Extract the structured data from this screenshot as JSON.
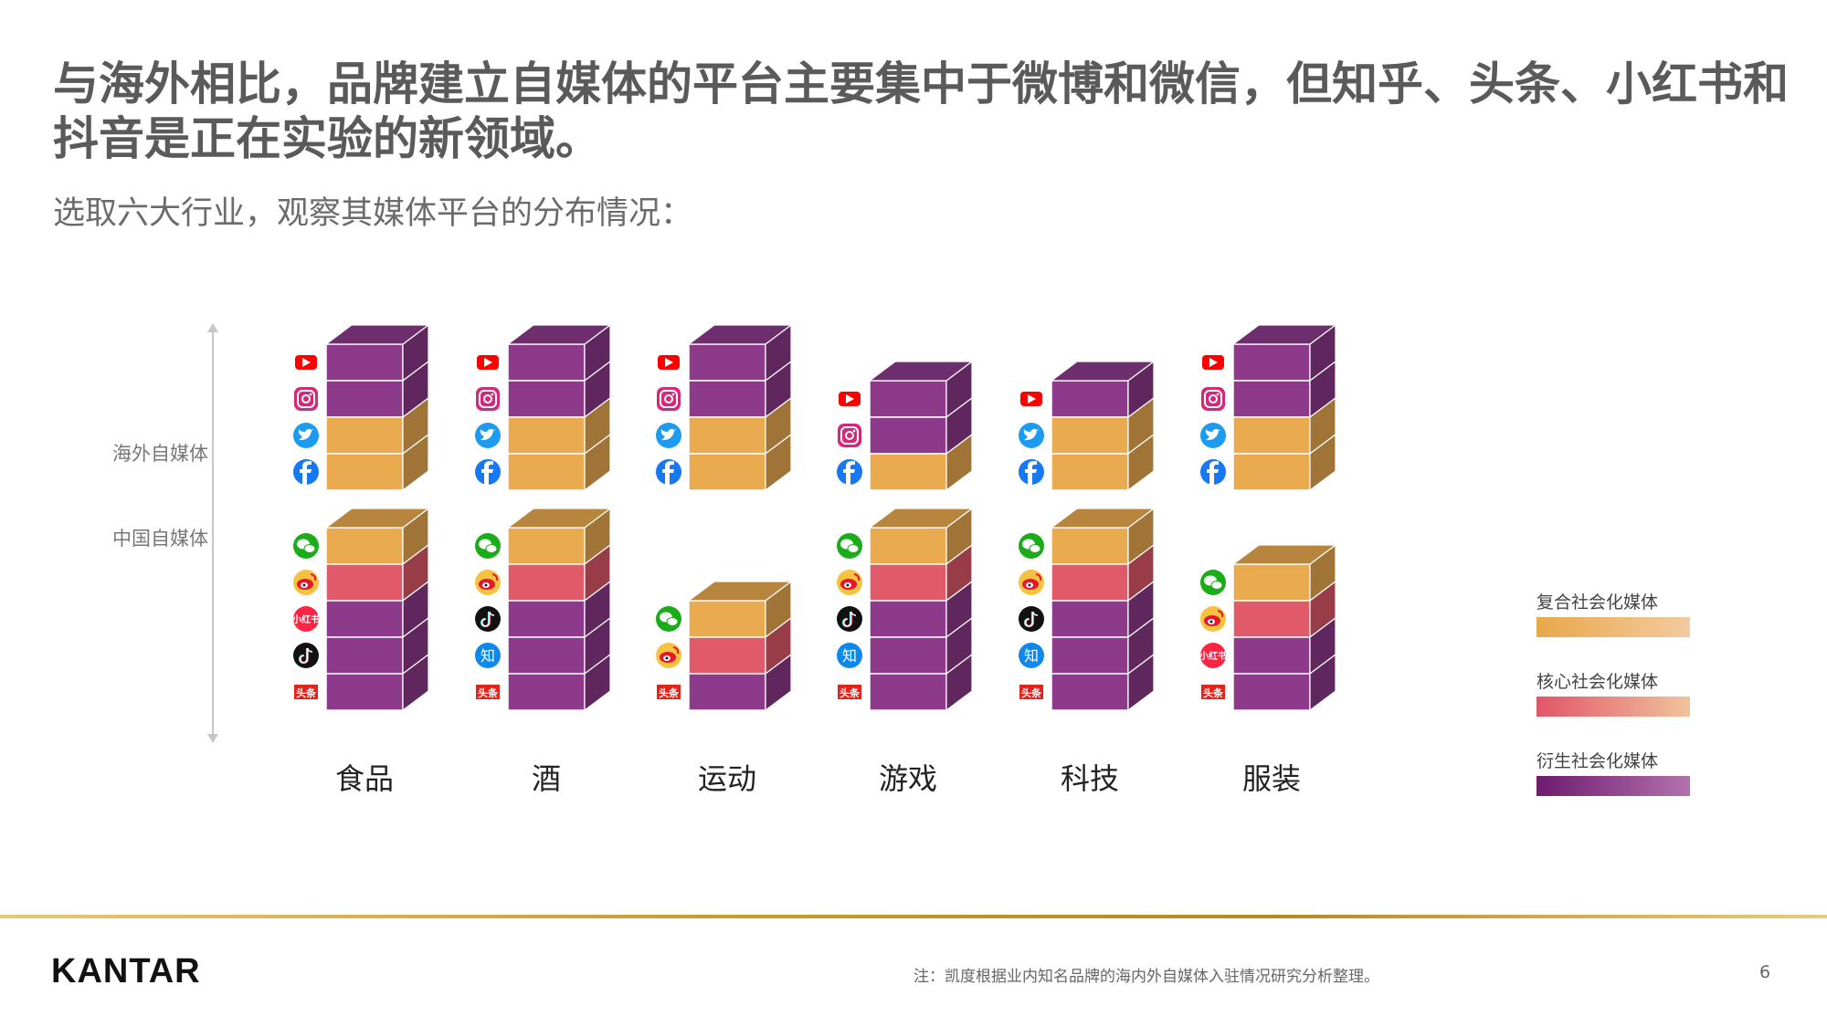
{
  "slide": {
    "title": "与海外相比，品牌建立自媒体的平台主要集中于微博和微信，但知乎、头条、小红书和抖音是正在实验的新领域。",
    "subtitle": "选取六大行业，观察其媒体平台的分布情况：",
    "overseas_label": "海外自媒体",
    "china_label": "中国自媒体",
    "note": "注：凯度根据业内知名品牌的海内外自媒体入驻情况研究分析整理。",
    "page_number": "6",
    "logo": "KANTAR"
  },
  "colors": {
    "composite": "#eaaa50",
    "core": "#e05a69",
    "derivative": "#8d3a8a"
  },
  "legend": [
    {
      "label": "复合社会化媒体",
      "type": "composite"
    },
    {
      "label": "核心社会化媒体",
      "type": "core"
    },
    {
      "label": "衍生社会化媒体",
      "type": "derivative"
    }
  ],
  "platforms": {
    "youtube": {
      "type": "derivative",
      "icon": "youtube-icon"
    },
    "instagram": {
      "type": "derivative",
      "icon": "instagram-icon"
    },
    "twitter": {
      "type": "composite",
      "icon": "twitter-icon"
    },
    "facebook": {
      "type": "composite",
      "icon": "facebook-icon"
    },
    "wechat": {
      "type": "composite",
      "icon": "wechat-icon"
    },
    "weibo": {
      "type": "core",
      "icon": "weibo-icon"
    },
    "xiaohongshu": {
      "type": "derivative",
      "icon": "xiaohongshu-icon",
      "text": "小红书"
    },
    "douyin": {
      "type": "derivative",
      "icon": "douyin-icon"
    },
    "zhihu": {
      "type": "derivative",
      "icon": "zhihu-icon",
      "text": "知"
    },
    "toutiao": {
      "type": "derivative",
      "icon": "toutiao-icon",
      "text": "头条"
    }
  },
  "chart_data": {
    "type": "table",
    "categories": [
      "食品",
      "酒",
      "运动",
      "游戏",
      "科技",
      "服装"
    ],
    "overseas": [
      [
        "youtube",
        "instagram",
        "twitter",
        "facebook"
      ],
      [
        "youtube",
        "instagram",
        "twitter",
        "facebook"
      ],
      [
        "youtube",
        "instagram",
        "twitter",
        "facebook"
      ],
      [
        "youtube",
        "instagram",
        "facebook"
      ],
      [
        "youtube",
        "twitter",
        "facebook"
      ],
      [
        "youtube",
        "instagram",
        "twitter",
        "facebook"
      ]
    ],
    "china": [
      [
        "wechat",
        "weibo",
        "xiaohongshu",
        "douyin",
        "toutiao"
      ],
      [
        "wechat",
        "weibo",
        "douyin",
        "zhihu",
        "toutiao"
      ],
      [
        "wechat",
        "weibo",
        "toutiao"
      ],
      [
        "wechat",
        "weibo",
        "douyin",
        "zhihu",
        "toutiao"
      ],
      [
        "wechat",
        "weibo",
        "douyin",
        "zhihu",
        "toutiao"
      ],
      [
        "wechat",
        "weibo",
        "xiaohongshu",
        "toutiao"
      ]
    ]
  }
}
